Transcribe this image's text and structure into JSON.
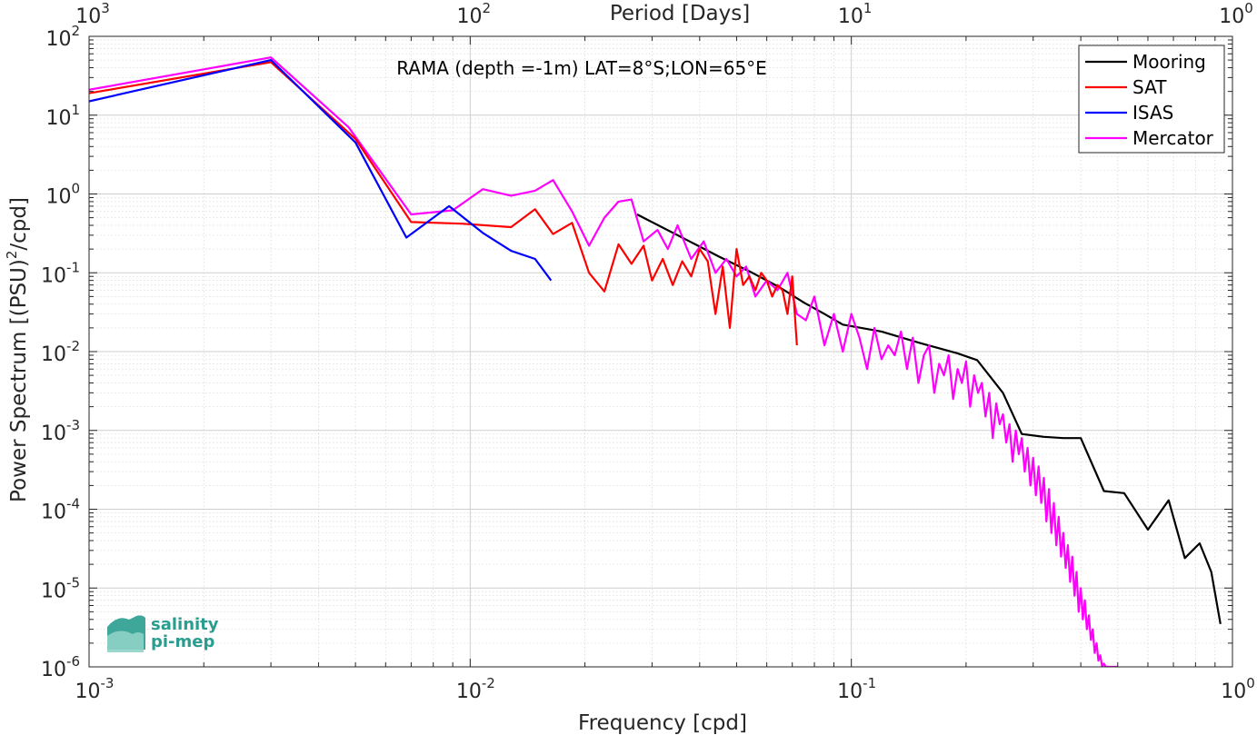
{
  "chart_data": {
    "type": "line",
    "title": "",
    "annotation": "RAMA (depth =-1m) LAT=8°S;LON=65°E",
    "xlabel": "Frequency [cpd]",
    "ylabel": "Power Spectrum [(PSU)²/cpd]",
    "ylabel_parts": {
      "pre": "Power Spectrum [(PSU)",
      "sup": "2",
      "post": "/cpd]"
    },
    "top_xlabel": "Period [Days]",
    "x_scale": "log",
    "y_scale": "log",
    "xlim": [
      0.001,
      1
    ],
    "ylim": [
      1e-06,
      100
    ],
    "grid": true,
    "legend_position": "top-right",
    "x_ticks": [
      {
        "base": "10",
        "exp": "-3"
      },
      {
        "base": "10",
        "exp": "-2"
      },
      {
        "base": "10",
        "exp": "-1"
      },
      {
        "base": "10",
        "exp": "0"
      }
    ],
    "y_ticks": [
      {
        "base": "10",
        "exp": "-6"
      },
      {
        "base": "10",
        "exp": "-5"
      },
      {
        "base": "10",
        "exp": "-4"
      },
      {
        "base": "10",
        "exp": "-3"
      },
      {
        "base": "10",
        "exp": "-2"
      },
      {
        "base": "10",
        "exp": "-1"
      },
      {
        "base": "10",
        "exp": "0"
      },
      {
        "base": "10",
        "exp": "1"
      },
      {
        "base": "10",
        "exp": "2"
      }
    ],
    "top_ticks": [
      {
        "base": "10",
        "exp": "3"
      },
      {
        "base": "10",
        "exp": "2"
      },
      {
        "base": "10",
        "exp": "1"
      },
      {
        "base": "10",
        "exp": "0"
      }
    ],
    "series": [
      {
        "name": "Mooring",
        "color": "#000000",
        "x": [
          0.0274,
          0.035,
          0.045,
          0.055,
          0.065,
          0.075,
          0.085,
          0.095,
          0.12,
          0.15,
          0.19,
          0.214,
          0.25,
          0.28,
          0.32,
          0.36,
          0.4,
          0.46,
          0.52,
          0.6,
          0.68,
          0.75,
          0.82,
          0.88,
          0.93
        ],
        "y": [
          0.55,
          0.3,
          0.16,
          0.1,
          0.065,
          0.042,
          0.03,
          0.022,
          0.018,
          0.013,
          0.0095,
          0.0078,
          0.003,
          0.0009,
          0.00083,
          0.0008,
          0.0008,
          0.00017,
          0.00016,
          5.5e-05,
          0.00013,
          2.4e-05,
          3.7e-05,
          1.6e-05,
          3.5e-06
        ]
      },
      {
        "name": "SAT",
        "color": "#ff0000",
        "x": [
          0.001,
          0.003,
          0.005,
          0.007,
          0.0095,
          0.0128,
          0.0148,
          0.0165,
          0.0185,
          0.0205,
          0.0225,
          0.0245,
          0.0265,
          0.0285,
          0.03,
          0.032,
          0.034,
          0.036,
          0.038,
          0.04,
          0.042,
          0.044,
          0.046,
          0.048,
          0.05,
          0.052,
          0.054,
          0.056,
          0.058,
          0.06,
          0.062,
          0.064,
          0.066,
          0.068,
          0.07,
          0.072
        ],
        "y": [
          19,
          47,
          5,
          0.44,
          0.42,
          0.38,
          0.64,
          0.31,
          0.43,
          0.1,
          0.058,
          0.23,
          0.13,
          0.22,
          0.08,
          0.15,
          0.07,
          0.14,
          0.09,
          0.2,
          0.14,
          0.03,
          0.12,
          0.02,
          0.2,
          0.07,
          0.09,
          0.06,
          0.1,
          0.08,
          0.05,
          0.07,
          0.06,
          0.03,
          0.09,
          0.012
        ]
      },
      {
        "name": "ISAS",
        "color": "#0000ff",
        "x": [
          0.001,
          0.003,
          0.005,
          0.0068,
          0.0088,
          0.0108,
          0.0128,
          0.0148,
          0.0163
        ],
        "y": [
          15,
          50,
          4.5,
          0.28,
          0.7,
          0.32,
          0.19,
          0.15,
          0.08
        ]
      },
      {
        "name": "Mercator",
        "color": "#ff00ff",
        "x": [
          0.001,
          0.003,
          0.0048,
          0.007,
          0.009,
          0.0108,
          0.0128,
          0.0148,
          0.0165,
          0.0185,
          0.0205,
          0.0225,
          0.0245,
          0.0265,
          0.0285,
          0.031,
          0.033,
          0.035,
          0.038,
          0.041,
          0.044,
          0.047,
          0.05,
          0.053,
          0.056,
          0.06,
          0.064,
          0.068,
          0.072,
          0.076,
          0.08,
          0.085,
          0.09,
          0.095,
          0.1,
          0.105,
          0.11,
          0.115,
          0.12,
          0.125,
          0.13,
          0.135,
          0.14,
          0.145,
          0.15,
          0.155,
          0.16,
          0.165,
          0.17,
          0.175,
          0.18,
          0.185,
          0.19,
          0.195,
          0.2,
          0.205,
          0.21,
          0.215,
          0.22,
          0.225,
          0.23,
          0.235,
          0.24,
          0.245,
          0.25,
          0.255,
          0.26,
          0.265,
          0.27,
          0.275,
          0.28,
          0.285,
          0.29,
          0.295,
          0.3,
          0.305,
          0.31,
          0.315,
          0.32,
          0.325,
          0.33,
          0.335,
          0.34,
          0.345,
          0.35,
          0.355,
          0.36,
          0.365,
          0.37,
          0.375,
          0.38,
          0.385,
          0.39,
          0.395,
          0.4,
          0.405,
          0.41,
          0.415,
          0.42,
          0.425,
          0.43,
          0.435,
          0.44,
          0.445,
          0.45,
          0.455,
          0.46,
          0.465,
          0.47,
          0.475,
          0.48,
          0.485,
          0.49,
          0.495,
          0.5
        ],
        "y": [
          21,
          54,
          7,
          0.55,
          0.62,
          1.15,
          0.95,
          1.1,
          1.5,
          0.6,
          0.22,
          0.5,
          0.8,
          0.85,
          0.25,
          0.35,
          0.2,
          0.4,
          0.15,
          0.25,
          0.1,
          0.15,
          0.09,
          0.12,
          0.05,
          0.08,
          0.06,
          0.1,
          0.03,
          0.025,
          0.05,
          0.012,
          0.03,
          0.01,
          0.03,
          0.015,
          0.006,
          0.02,
          0.008,
          0.012,
          0.009,
          0.018,
          0.006,
          0.015,
          0.004,
          0.009,
          0.012,
          0.003,
          0.007,
          0.005,
          0.009,
          0.0025,
          0.006,
          0.004,
          0.0075,
          0.002,
          0.005,
          0.003,
          0.004,
          0.0015,
          0.003,
          0.0008,
          0.0022,
          0.0012,
          0.0016,
          0.0007,
          0.0012,
          0.0004,
          0.001,
          0.0005,
          0.0008,
          0.0003,
          0.0006,
          0.0002,
          0.00045,
          0.00015,
          0.00035,
          0.00012,
          0.00025,
          7e-05,
          0.00018,
          5e-05,
          0.00012,
          3.5e-05,
          8e-05,
          2.5e-05,
          5e-05,
          1.8e-05,
          3.5e-05,
          1.2e-05,
          2.5e-05,
          8e-06,
          1.6e-05,
          5e-06,
          1e-05,
          4e-06,
          7e-06,
          3e-06,
          4.5e-06,
          2.2e-06,
          3e-06,
          1.5e-06,
          2e-06,
          1.2e-06,
          1.4e-06,
          1e-06,
          1.1e-06,
          1e-06,
          1e-06,
          1e-06,
          1e-06,
          1e-06,
          1e-06,
          1e-06,
          1e-06
        ]
      }
    ]
  },
  "logo": {
    "line1": "salinity",
    "line2": "pi-mep"
  }
}
